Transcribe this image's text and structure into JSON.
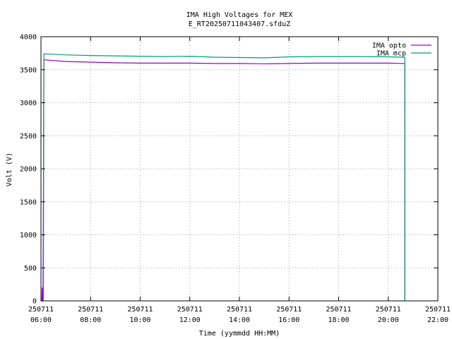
{
  "chart_data": {
    "type": "line",
    "title": "IMA High Voltages for MEX",
    "subtitle": "E_RT20250711043407.sfduZ",
    "xlabel": "Time (yymmdd HH:MM)",
    "ylabel": "Volt (V)",
    "xlim": [
      "250711 06:00",
      "250711 22:00"
    ],
    "ylim": [
      0,
      4000
    ],
    "yticks": [
      0,
      500,
      1000,
      1500,
      2000,
      2500,
      3000,
      3500,
      4000
    ],
    "xticks": [
      {
        "date": "250711",
        "time": "06:00"
      },
      {
        "date": "250711",
        "time": "08:00"
      },
      {
        "date": "250711",
        "time": "10:00"
      },
      {
        "date": "250711",
        "time": "12:00"
      },
      {
        "date": "250711",
        "time": "14:00"
      },
      {
        "date": "250711",
        "time": "16:00"
      },
      {
        "date": "250711",
        "time": "18:00"
      },
      {
        "date": "250711",
        "time": "20:00"
      },
      {
        "date": "250711",
        "time": "22:00"
      }
    ],
    "grid": true,
    "legend_position": "top-right",
    "series": [
      {
        "name": "IMA opto",
        "color": "#9400d3",
        "points": [
          [
            "06:00",
            0
          ],
          [
            "06:02",
            0
          ],
          [
            "06:03",
            200
          ],
          [
            "06:04",
            0
          ],
          [
            "06:05",
            0
          ],
          [
            "06:07",
            3650
          ],
          [
            "06:30",
            3640
          ],
          [
            "07:00",
            3625
          ],
          [
            "07:30",
            3620
          ],
          [
            "08:00",
            3615
          ],
          [
            "09:00",
            3605
          ],
          [
            "10:00",
            3600
          ],
          [
            "11:00",
            3600
          ],
          [
            "12:00",
            3600
          ],
          [
            "13:00",
            3595
          ],
          [
            "14:00",
            3595
          ],
          [
            "15:00",
            3590
          ],
          [
            "16:00",
            3595
          ],
          [
            "17:00",
            3600
          ],
          [
            "18:00",
            3600
          ],
          [
            "19:00",
            3600
          ],
          [
            "20:00",
            3600
          ],
          [
            "20:40",
            3595
          ],
          [
            "20:40",
            0
          ]
        ]
      },
      {
        "name": "IMA mcp",
        "color": "#009e73",
        "points": [
          [
            "06:00",
            0
          ],
          [
            "06:06",
            0
          ],
          [
            "06:07",
            3740
          ],
          [
            "06:30",
            3735
          ],
          [
            "07:00",
            3725
          ],
          [
            "08:00",
            3715
          ],
          [
            "09:00",
            3710
          ],
          [
            "10:00",
            3705
          ],
          [
            "11:00",
            3700
          ],
          [
            "12:00",
            3705
          ],
          [
            "13:00",
            3690
          ],
          [
            "14:00",
            3685
          ],
          [
            "15:00",
            3680
          ],
          [
            "16:00",
            3695
          ],
          [
            "17:00",
            3700
          ],
          [
            "18:00",
            3700
          ],
          [
            "19:00",
            3700
          ],
          [
            "20:00",
            3695
          ],
          [
            "20:40",
            3690
          ],
          [
            "20:40",
            0
          ]
        ]
      }
    ]
  }
}
